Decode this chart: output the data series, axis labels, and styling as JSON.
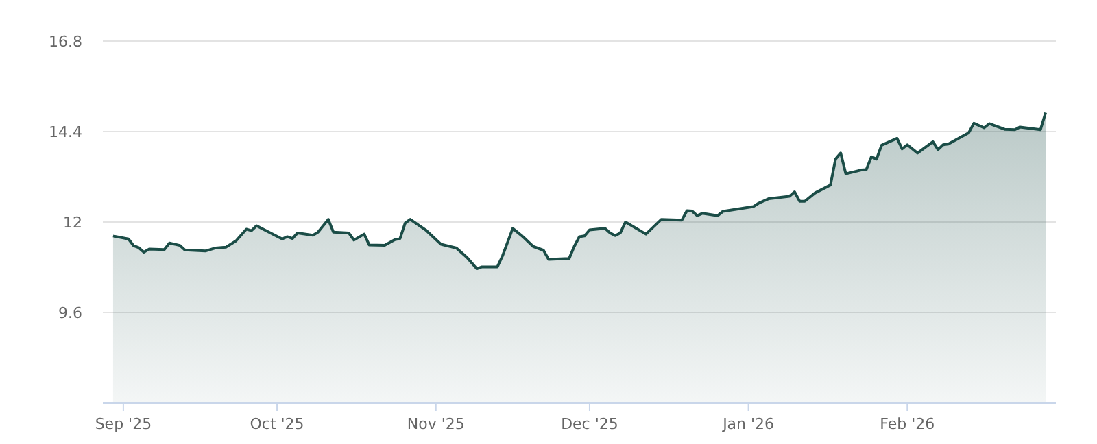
{
  "chart_data": {
    "type": "area",
    "xlim": [
      "2025-08-28",
      "2026-03-02"
    ],
    "xticks": [
      {
        "value": "2025-09-01",
        "label": "Sep '25"
      },
      {
        "value": "2025-10-01",
        "label": "Oct '25"
      },
      {
        "value": "2025-11-01",
        "label": "Nov '25"
      },
      {
        "value": "2025-12-01",
        "label": "Dec '25"
      },
      {
        "value": "2026-01-01",
        "label": "Jan '26"
      },
      {
        "value": "2026-02-01",
        "label": "Feb '26"
      }
    ],
    "ylim": [
      7.2,
      16.8
    ],
    "yticks": [
      9.6,
      12,
      14.4,
      16.8
    ],
    "grid": "y",
    "marker": "none",
    "line_style": "solid",
    "x": [
      "2025-08-30",
      "2025-09-02",
      "2025-09-03",
      "2025-09-04",
      "2025-09-05",
      "2025-09-06",
      "2025-09-09",
      "2025-09-10",
      "2025-09-12",
      "2025-09-13",
      "2025-09-17",
      "2025-09-19",
      "2025-09-21",
      "2025-09-23",
      "2025-09-25",
      "2025-09-26",
      "2025-09-27",
      "2025-10-02",
      "2025-10-03",
      "2025-10-04",
      "2025-10-05",
      "2025-10-08",
      "2025-10-09",
      "2025-10-11",
      "2025-10-12",
      "2025-10-15",
      "2025-10-16",
      "2025-10-18",
      "2025-10-19",
      "2025-10-22",
      "2025-10-24",
      "2025-10-25",
      "2025-10-26",
      "2025-10-27",
      "2025-10-30",
      "2025-11-02",
      "2025-11-05",
      "2025-11-07",
      "2025-11-09",
      "2025-11-10",
      "2025-11-13",
      "2025-11-14",
      "2025-11-16",
      "2025-11-18",
      "2025-11-20",
      "2025-11-22",
      "2025-11-23",
      "2025-11-27",
      "2025-11-28",
      "2025-11-29",
      "2025-11-30",
      "2025-12-01",
      "2025-12-04",
      "2025-12-05",
      "2025-12-06",
      "2025-12-07",
      "2025-12-08",
      "2025-12-12",
      "2025-12-15",
      "2025-12-19",
      "2025-12-20",
      "2025-12-21",
      "2025-12-22",
      "2025-12-23",
      "2025-12-26",
      "2025-12-27",
      "2026-01-02",
      "2026-01-03",
      "2026-01-05",
      "2026-01-09",
      "2026-01-10",
      "2026-01-11",
      "2026-01-12",
      "2026-01-14",
      "2026-01-17",
      "2026-01-18",
      "2026-01-19",
      "2026-01-20",
      "2026-01-23",
      "2026-01-24",
      "2026-01-25",
      "2026-01-26",
      "2026-01-27",
      "2026-01-30",
      "2026-01-31",
      "2026-02-01",
      "2026-02-03",
      "2026-02-06",
      "2026-02-07",
      "2026-02-08",
      "2026-02-09",
      "2026-02-13",
      "2026-02-14",
      "2026-02-16",
      "2026-02-17",
      "2026-02-20",
      "2026-02-22",
      "2026-02-23",
      "2026-02-27",
      "2026-02-28"
    ],
    "series": [
      {
        "color": "#1b4d47",
        "values": [
          11.63,
          11.55,
          11.37,
          11.32,
          11.2,
          11.28,
          11.27,
          11.44,
          11.38,
          11.26,
          11.23,
          11.31,
          11.33,
          11.5,
          11.81,
          11.77,
          11.9,
          11.55,
          11.61,
          11.56,
          11.71,
          11.65,
          11.73,
          12.07,
          11.73,
          11.71,
          11.52,
          11.68,
          11.39,
          11.38,
          11.53,
          11.56,
          11.97,
          12.07,
          11.79,
          11.41,
          11.31,
          11.07,
          10.76,
          10.81,
          10.81,
          11.1,
          11.83,
          11.61,
          11.35,
          11.25,
          11.01,
          11.03,
          11.35,
          11.61,
          11.63,
          11.79,
          11.83,
          11.71,
          11.64,
          11.71,
          12.0,
          11.68,
          12.07,
          12.05,
          12.3,
          12.29,
          12.17,
          12.23,
          12.17,
          12.28,
          12.41,
          12.5,
          12.62,
          12.68,
          12.8,
          12.55,
          12.55,
          12.77,
          12.98,
          13.67,
          13.83,
          13.28,
          13.38,
          13.39,
          13.73,
          13.67,
          14.04,
          14.22,
          13.94,
          14.05,
          13.83,
          14.13,
          13.92,
          14.05,
          14.07,
          14.37,
          14.62,
          14.5,
          14.61,
          14.46,
          14.45,
          14.52,
          14.45,
          14.9
        ]
      }
    ]
  }
}
